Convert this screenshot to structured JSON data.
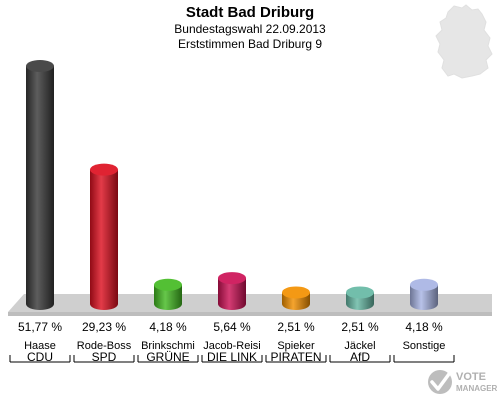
{
  "title": "Stadt Bad Driburg",
  "subtitle1": "Bundestagswahl 22.09.2013",
  "subtitle2": "Erststimmen Bad Driburg 9",
  "logo_text": [
    "VOTE",
    "MANAGER"
  ],
  "chart_data": {
    "type": "bar",
    "style": "3d-cylinder",
    "categories": [
      "Haase",
      "Rode-Boss",
      "Brinkschmi",
      "Jacob-Reisi",
      "Spieker",
      "Jäckel",
      "Sonstige"
    ],
    "parties": [
      "CDU",
      "SPD",
      "GRÜNE",
      "DIE LINK",
      "PIRATEN",
      "AfD",
      ""
    ],
    "values": [
      51.77,
      29.23,
      4.18,
      5.64,
      2.51,
      2.51,
      4.18
    ],
    "value_labels": [
      "51,77 %",
      "29,23 %",
      "4,18 %",
      "5,64 %",
      "2,51 %",
      "2,51 %",
      "4,18 %"
    ],
    "colors": [
      "#3a3a3a",
      "#dd1020",
      "#44bb22",
      "#cc1155",
      "#f39000",
      "#66b8a4",
      "#a8b4e4"
    ],
    "ylim": [
      0,
      55
    ],
    "grid": false,
    "legend": "none"
  }
}
